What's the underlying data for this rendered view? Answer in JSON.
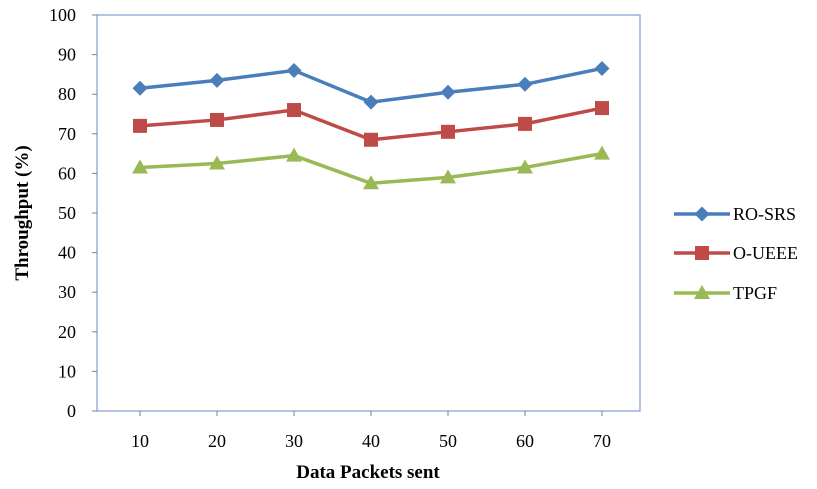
{
  "chart_data": {
    "type": "line",
    "title": "",
    "xlabel": "Data Packets sent",
    "ylabel": "Throughput (%)",
    "x": [
      10,
      20,
      30,
      40,
      50,
      60,
      70
    ],
    "ylim": [
      0,
      100
    ],
    "yticks": [
      0,
      10,
      20,
      30,
      40,
      50,
      60,
      70,
      80,
      90,
      100
    ],
    "grid": false,
    "legend_position": "right",
    "series": [
      {
        "name": "RO-SRS",
        "values": [
          81.5,
          83.5,
          86,
          78,
          80.5,
          82.5,
          86.5
        ],
        "color": "#4a7ebb",
        "marker": "diamond"
      },
      {
        "name": "O-UEEE",
        "values": [
          72,
          73.5,
          76,
          68.5,
          70.5,
          72.5,
          76.5
        ],
        "color": "#be4b48",
        "marker": "square"
      },
      {
        "name": "TPGF",
        "values": [
          61.5,
          62.5,
          64.5,
          57.5,
          59,
          61.5,
          65
        ],
        "color": "#98b954",
        "marker": "triangle"
      }
    ]
  }
}
